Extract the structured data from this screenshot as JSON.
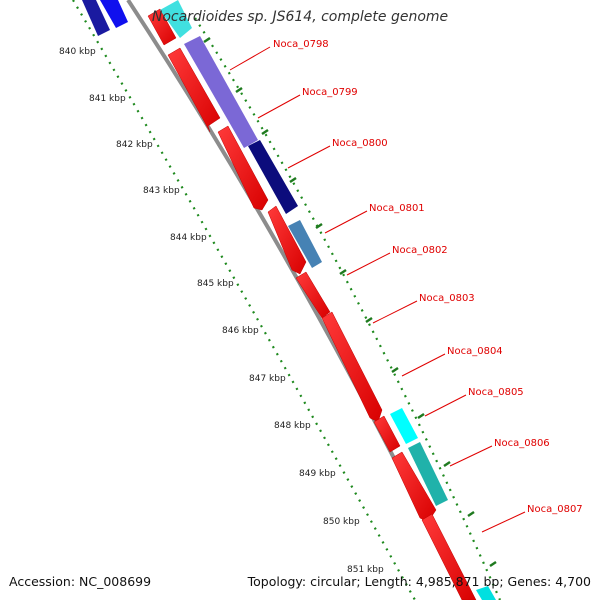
{
  "title": "Nocardioides sp. JS614, complete genome",
  "footer": {
    "accession": "Accession: NC_008699",
    "summary": "Topology: circular; Length: 4,985,871 bp; Genes: 4,700"
  },
  "colors": {
    "forward": "#ff0000",
    "backbone": "#8c8c8c",
    "ticks": "#1f7a1f",
    "label": "#e00000"
  },
  "ticks": [
    "840 kbp",
    "841 kbp",
    "842 kbp",
    "843 kbp",
    "844 kbp",
    "845 kbp",
    "846 kbp",
    "847 kbp",
    "848 kbp",
    "849 kbp",
    "850 kbp",
    "851 kbp"
  ],
  "genes": [
    {
      "name": "Noca_0798"
    },
    {
      "name": "Noca_0799"
    },
    {
      "name": "Noca_0800"
    },
    {
      "name": "Noca_0801"
    },
    {
      "name": "Noca_0802"
    },
    {
      "name": "Noca_0803"
    },
    {
      "name": "Noca_0804"
    },
    {
      "name": "Noca_0805"
    },
    {
      "name": "Noca_0806"
    },
    {
      "name": "Noca_0807"
    }
  ]
}
